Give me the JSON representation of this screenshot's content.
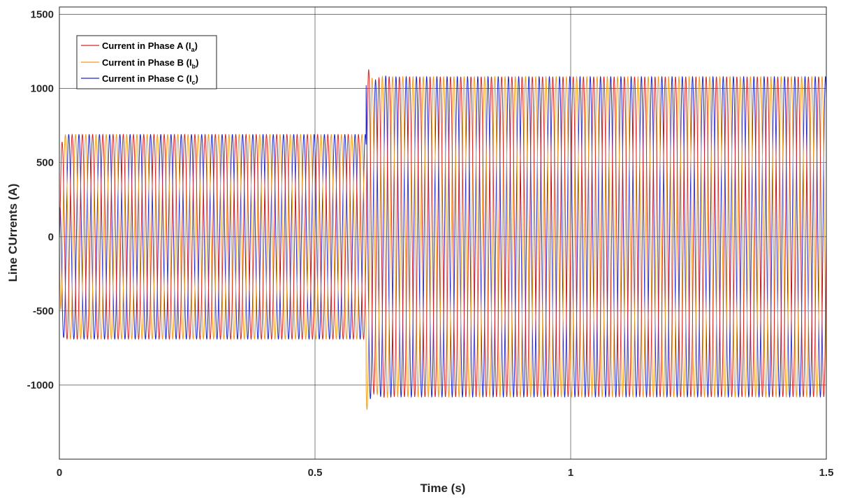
{
  "chart_data": {
    "type": "line",
    "xlabel": "Time (s)",
    "ylabel": "Line CUrrents (A)",
    "xlim": [
      0,
      1.5
    ],
    "ylim": [
      -1500,
      1550
    ],
    "x_ticks": [
      0,
      0.5,
      1,
      1.5
    ],
    "x_tick_labels": [
      "0",
      "0.5",
      "1",
      "1.5"
    ],
    "y_ticks": [
      -1000,
      -500,
      0,
      500,
      1000,
      1500
    ],
    "y_tick_labels": [
      "-1000",
      "-500",
      "0",
      "500",
      "1000",
      "1500"
    ],
    "grid": true,
    "legend_position": "top-left",
    "signal": {
      "waveform": "three-phase sinusoid",
      "frequency_hz": 50,
      "step_time_s": 0.6,
      "amplitude_before_a": 690,
      "amplitude_after_a": 1080,
      "transient_peak_a": 1180
    },
    "series": [
      {
        "name": "Current in Phase A (I",
        "subscript": "a",
        "label_suffix": ")",
        "color": "#d62728",
        "phase_deg": 0
      },
      {
        "name": "Current in Phase B (I",
        "subscript": "b",
        "label_suffix": ")",
        "color": "#f29a1c",
        "phase_deg": -120
      },
      {
        "name": "Current in Phase C (I",
        "subscript": "c",
        "label_suffix": ")",
        "color": "#1f26c7",
        "phase_deg": 120
      }
    ]
  }
}
